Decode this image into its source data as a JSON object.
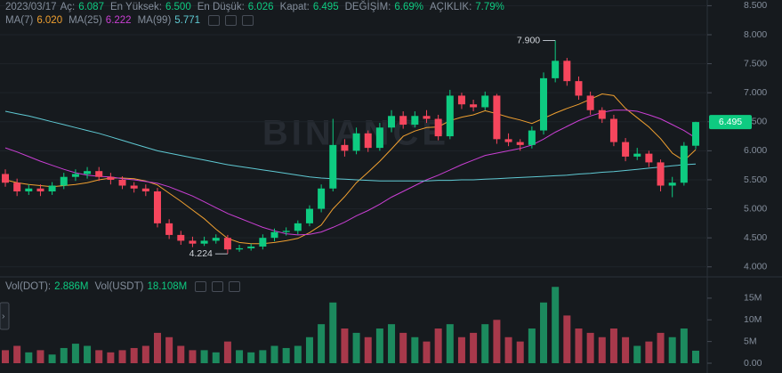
{
  "header": {
    "date": "2023/03/17",
    "fields": [
      {
        "label": "Aç:",
        "value": "6.087"
      },
      {
        "label": "En Yüksek:",
        "value": "6.500"
      },
      {
        "label": "En Düşük:",
        "value": "6.026"
      },
      {
        "label": "Kapat:",
        "value": "6.495"
      },
      {
        "label": "DEĞİŞİM:",
        "value": "6.69%"
      },
      {
        "label": "AÇIKLIK:",
        "value": "7.79%"
      }
    ]
  },
  "watermark": "BINANCE",
  "chart_data": [
    {
      "type": "candlestick",
      "up_color": "#0ecb81",
      "down_color": "#f6465d",
      "open": [
        5.6,
        5.45,
        5.3,
        5.35,
        5.3,
        5.4,
        5.55,
        5.6,
        5.65,
        5.55,
        5.5,
        5.4,
        5.35,
        5.3,
        4.75,
        4.55,
        4.45,
        4.4,
        4.45,
        4.5,
        4.3,
        4.32,
        4.35,
        4.5,
        4.6,
        4.62,
        4.75,
        5.0,
        5.35,
        6.1,
        6.0,
        6.3,
        6.05,
        6.4,
        6.6,
        6.45,
        6.6,
        6.55,
        6.25,
        6.95,
        6.8,
        6.75,
        6.95,
        6.2,
        6.15,
        6.1,
        6.35,
        7.25,
        7.55,
        7.2,
        6.95,
        6.7,
        6.55,
        6.15,
        5.9,
        5.95,
        5.8,
        5.4,
        5.45,
        6.087
      ],
      "high": [
        5.68,
        5.52,
        5.42,
        5.42,
        5.46,
        5.62,
        5.68,
        5.72,
        5.72,
        5.62,
        5.56,
        5.46,
        5.42,
        5.36,
        4.82,
        4.62,
        4.52,
        4.52,
        4.56,
        4.55,
        4.38,
        4.4,
        4.56,
        4.66,
        4.68,
        4.8,
        5.06,
        5.42,
        6.55,
        6.2,
        6.4,
        6.35,
        6.48,
        6.7,
        6.68,
        6.68,
        6.7,
        6.62,
        7.05,
        7.0,
        6.88,
        7.02,
        6.98,
        6.3,
        6.2,
        6.42,
        7.35,
        7.9,
        7.6,
        7.28,
        7.02,
        6.75,
        6.62,
        6.22,
        6.05,
        6.0,
        5.85,
        5.55,
        6.15,
        6.5
      ],
      "low": [
        5.38,
        5.22,
        5.24,
        5.22,
        5.24,
        5.34,
        5.48,
        5.52,
        5.48,
        5.42,
        5.34,
        5.28,
        5.22,
        4.68,
        4.48,
        4.38,
        4.34,
        4.36,
        4.4,
        4.224,
        4.26,
        4.28,
        4.3,
        4.44,
        4.54,
        4.56,
        4.7,
        4.94,
        5.3,
        5.9,
        5.94,
        5.98,
        6.0,
        6.32,
        6.38,
        6.4,
        6.48,
        6.18,
        6.2,
        6.72,
        6.68,
        6.7,
        6.12,
        6.08,
        6.0,
        6.04,
        6.28,
        7.18,
        7.12,
        6.88,
        6.62,
        6.48,
        6.08,
        5.82,
        5.84,
        5.72,
        5.3,
        5.2,
        5.4,
        6.026
      ],
      "close": [
        5.45,
        5.3,
        5.35,
        5.3,
        5.4,
        5.55,
        5.6,
        5.65,
        5.55,
        5.5,
        5.4,
        5.35,
        5.3,
        4.75,
        4.55,
        4.45,
        4.4,
        4.45,
        4.5,
        4.3,
        4.32,
        4.35,
        4.5,
        4.6,
        4.62,
        4.75,
        5.0,
        5.35,
        6.1,
        6.0,
        6.3,
        6.05,
        6.4,
        6.6,
        6.45,
        6.6,
        6.55,
        6.25,
        6.95,
        6.8,
        6.75,
        6.95,
        6.2,
        6.15,
        6.1,
        6.35,
        7.25,
        7.55,
        7.2,
        6.95,
        6.7,
        6.55,
        6.15,
        5.9,
        5.95,
        5.8,
        5.4,
        5.45,
        6.087,
        6.495
      ],
      "series": [
        {
          "name": "MA(7)",
          "value_label": "6.020",
          "color": "#f0a030",
          "values": [
            5.5,
            5.45,
            5.42,
            5.4,
            5.38,
            5.4,
            5.42,
            5.45,
            5.5,
            5.53,
            5.53,
            5.52,
            5.48,
            5.41,
            5.27,
            5.13,
            4.98,
            4.83,
            4.65,
            4.49,
            4.42,
            4.4,
            4.4,
            4.42,
            4.45,
            4.49,
            4.59,
            4.72,
            5.0,
            5.21,
            5.45,
            5.63,
            5.82,
            6.03,
            6.25,
            6.34,
            6.4,
            6.41,
            6.52,
            6.58,
            6.62,
            6.69,
            6.64,
            6.58,
            6.53,
            6.47,
            6.56,
            6.65,
            6.73,
            6.8,
            6.89,
            6.98,
            6.95,
            6.73,
            6.57,
            6.41,
            6.21,
            5.96,
            5.83,
            6.02
          ]
        },
        {
          "name": "MA(25)",
          "value_label": "6.222",
          "color": "#c93fd3",
          "values": [
            6.05,
            5.98,
            5.9,
            5.82,
            5.75,
            5.68,
            5.62,
            5.58,
            5.56,
            5.55,
            5.52,
            5.5,
            5.47,
            5.44,
            5.38,
            5.3,
            5.22,
            5.12,
            5.02,
            4.92,
            4.84,
            4.76,
            4.68,
            4.62,
            4.57,
            4.55,
            4.56,
            4.6,
            4.68,
            4.77,
            4.88,
            4.97,
            5.08,
            5.2,
            5.3,
            5.4,
            5.5,
            5.58,
            5.67,
            5.76,
            5.84,
            5.92,
            5.96,
            6.0,
            6.04,
            6.1,
            6.2,
            6.32,
            6.42,
            6.52,
            6.6,
            6.66,
            6.7,
            6.7,
            6.68,
            6.62,
            6.55,
            6.45,
            6.35,
            6.222
          ]
        },
        {
          "name": "MA(99)",
          "value_label": "5.771",
          "color": "#5fc9d3",
          "values": [
            6.68,
            6.64,
            6.6,
            6.55,
            6.5,
            6.45,
            6.4,
            6.35,
            6.3,
            6.24,
            6.18,
            6.12,
            6.06,
            6.0,
            5.96,
            5.92,
            5.88,
            5.84,
            5.8,
            5.76,
            5.73,
            5.7,
            5.67,
            5.64,
            5.61,
            5.58,
            5.55,
            5.53,
            5.52,
            5.51,
            5.5,
            5.49,
            5.48,
            5.48,
            5.48,
            5.48,
            5.48,
            5.49,
            5.49,
            5.5,
            5.5,
            5.51,
            5.52,
            5.53,
            5.54,
            5.55,
            5.56,
            5.57,
            5.58,
            5.6,
            5.61,
            5.63,
            5.64,
            5.66,
            5.68,
            5.7,
            5.72,
            5.74,
            5.76,
            5.771
          ]
        }
      ],
      "ylim": [
        3.843,
        8.598
      ],
      "yticks": [
        {
          "value": 8.5,
          "label": "8.500"
        },
        {
          "value": 8,
          "label": "8.000"
        },
        {
          "value": 7.5,
          "label": "7.500"
        },
        {
          "value": 7,
          "label": "7.000"
        },
        {
          "value": 6.5,
          "label": "6.500"
        },
        {
          "value": 6,
          "label": "6.000"
        },
        {
          "value": 5.5,
          "label": "5.500"
        },
        {
          "value": 5,
          "label": "5.000"
        },
        {
          "value": 4.5,
          "label": "4.500"
        },
        {
          "value": 4,
          "label": "4.000"
        }
      ],
      "annotations": [
        {
          "label": "7.900",
          "value": 7.9
        },
        {
          "label": "4.224",
          "value": 4.224
        }
      ],
      "price_label": {
        "label": "6.495",
        "value": 6.495
      },
      "grid": true
    },
    {
      "type": "bar",
      "legend": [
        {
          "label": "Vol(DOT):",
          "value": "2.886M"
        },
        {
          "label": "Vol(USDT)",
          "value": "18.108M"
        }
      ],
      "up_color": "#1c8a5e",
      "down_color": "#a8394b",
      "values": [
        3,
        4,
        2.5,
        3,
        2,
        3.5,
        4.5,
        4,
        3,
        2.5,
        3,
        3.5,
        4,
        7,
        6,
        4,
        3,
        3,
        2.5,
        5,
        3,
        2.5,
        3,
        4,
        3.5,
        4,
        6,
        9,
        14,
        8,
        7,
        6,
        8,
        9,
        7,
        6,
        5,
        8,
        9,
        6,
        7,
        9,
        10,
        6,
        5,
        8,
        14,
        17.6,
        11,
        8,
        7,
        6,
        8,
        6,
        4,
        5,
        7,
        6,
        8,
        2.886
      ],
      "ylim": [
        0,
        19.5
      ],
      "yticks": [
        {
          "value": 15,
          "label": "15M"
        },
        {
          "value": 10,
          "label": "10M"
        },
        {
          "value": 5,
          "label": "5M"
        },
        {
          "value": 0,
          "label": "0.00"
        }
      ]
    }
  ]
}
